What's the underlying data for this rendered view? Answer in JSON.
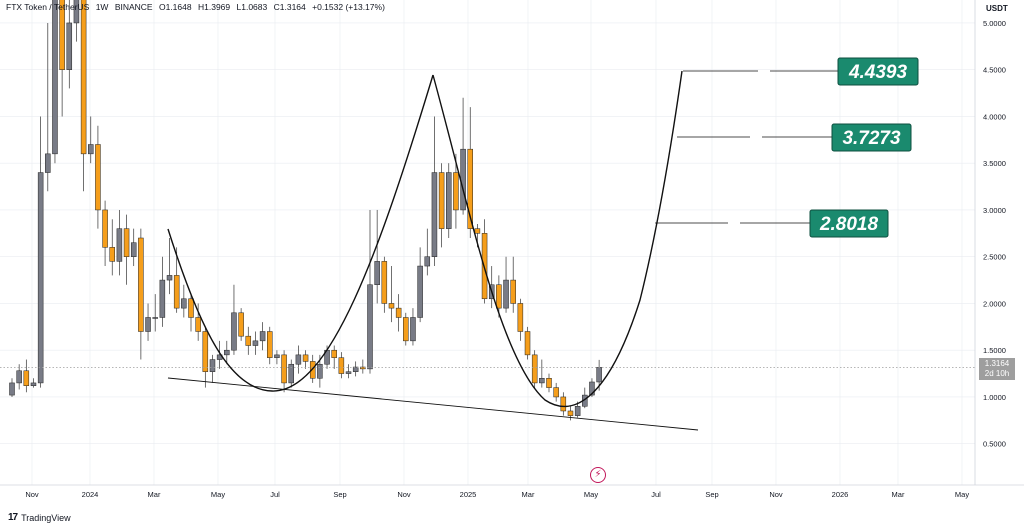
{
  "header": {
    "symbol": "FTX Token / TetherUS",
    "interval": "1W",
    "exchange": "BINANCE",
    "open": "O1.1648",
    "high": "H1.3969",
    "low": "L1.0683",
    "close": "C1.3164",
    "change": "+0.1532 (+13.17%)"
  },
  "price_axis": {
    "unit": "USDT",
    "current_price": "1.3164",
    "countdown": "2d 10h"
  },
  "branding": {
    "name": "TradingView"
  },
  "colors": {
    "up": "#787b86",
    "down": "#f59e1b",
    "target_bg": "#1a8a6e",
    "grid": "#e9ecf1"
  },
  "chart_data": {
    "type": "candlestick",
    "interval": "1W",
    "y_scale": "linear",
    "ylim": [
      0.2,
      5.2
    ],
    "y_ticks": [
      "5.0000",
      "4.5000",
      "4.0000",
      "3.5000",
      "3.0000",
      "2.5000",
      "2.0000",
      "1.5000",
      "1.0000",
      "0.5000"
    ],
    "y_tick_values": [
      5,
      4.5,
      4,
      3.5,
      3,
      2.5,
      2,
      1.5,
      1,
      0.5
    ],
    "x_ticks": [
      "Nov",
      "2024",
      "Mar",
      "May",
      "Jul",
      "Sep",
      "Nov",
      "2025",
      "Mar",
      "May",
      "Jul",
      "Sep",
      "Nov",
      "2026",
      "Mar",
      "May"
    ],
    "current_price": 1.3164,
    "targets": [
      {
        "label": "4.4393",
        "value": 4.4393
      },
      {
        "label": "3.7273",
        "value": 3.7273
      },
      {
        "label": "2.8018",
        "value": 2.8018
      }
    ],
    "candles": [
      [
        1.02,
        1.15,
        1.0,
        1.2
      ],
      [
        1.15,
        1.28,
        1.08,
        1.35
      ],
      [
        1.28,
        1.12,
        1.05,
        1.4
      ],
      [
        1.12,
        1.15,
        1.1,
        1.2
      ],
      [
        1.15,
        3.4,
        1.1,
        4.0
      ],
      [
        3.4,
        3.6,
        3.2,
        5.0
      ],
      [
        3.6,
        5.8,
        3.5,
        6.0
      ],
      [
        5.8,
        4.5,
        4.0,
        6.0
      ],
      [
        4.5,
        5.0,
        4.3,
        5.3
      ],
      [
        5.0,
        5.5,
        4.8,
        6.0
      ],
      [
        5.5,
        3.6,
        3.2,
        6.0
      ],
      [
        3.6,
        3.7,
        3.5,
        4.0
      ],
      [
        3.7,
        3.0,
        2.8,
        3.9
      ],
      [
        3.0,
        2.6,
        2.4,
        3.1
      ],
      [
        2.6,
        2.45,
        2.3,
        2.9
      ],
      [
        2.45,
        2.8,
        2.3,
        3.0
      ],
      [
        2.8,
        2.5,
        2.2,
        2.95
      ],
      [
        2.5,
        2.65,
        2.4,
        2.8
      ],
      [
        2.7,
        1.7,
        1.4,
        2.8
      ],
      [
        1.7,
        1.85,
        1.6,
        2.0
      ],
      [
        1.85,
        1.85,
        1.7,
        2.1
      ],
      [
        1.85,
        2.25,
        1.75,
        2.5
      ],
      [
        2.25,
        2.3,
        2.1,
        2.7
      ],
      [
        2.3,
        1.95,
        1.9,
        2.6
      ],
      [
        1.95,
        2.05,
        1.85,
        2.2
      ],
      [
        2.05,
        1.85,
        1.7,
        2.1
      ],
      [
        1.85,
        1.7,
        1.6,
        2.0
      ],
      [
        1.7,
        1.27,
        1.1,
        1.75
      ],
      [
        1.27,
        1.4,
        1.15,
        1.45
      ],
      [
        1.4,
        1.45,
        1.3,
        1.6
      ],
      [
        1.45,
        1.5,
        1.35,
        1.6
      ],
      [
        1.5,
        1.9,
        1.45,
        2.2
      ],
      [
        1.9,
        1.65,
        1.6,
        1.95
      ],
      [
        1.65,
        1.55,
        1.45,
        1.75
      ],
      [
        1.55,
        1.6,
        1.45,
        1.7
      ],
      [
        1.6,
        1.7,
        1.5,
        1.8
      ],
      [
        1.7,
        1.42,
        1.35,
        1.75
      ],
      [
        1.42,
        1.45,
        1.35,
        1.5
      ],
      [
        1.45,
        1.15,
        1.05,
        1.5
      ],
      [
        1.15,
        1.35,
        1.1,
        1.4
      ],
      [
        1.35,
        1.45,
        1.25,
        1.55
      ],
      [
        1.45,
        1.38,
        1.3,
        1.5
      ],
      [
        1.38,
        1.2,
        1.15,
        1.45
      ],
      [
        1.2,
        1.35,
        1.1,
        1.45
      ],
      [
        1.35,
        1.5,
        1.3,
        1.55
      ],
      [
        1.5,
        1.42,
        1.3,
        1.55
      ],
      [
        1.42,
        1.25,
        1.2,
        1.48
      ],
      [
        1.25,
        1.27,
        1.2,
        1.35
      ],
      [
        1.27,
        1.32,
        1.22,
        1.38
      ],
      [
        1.32,
        1.3,
        1.25,
        1.4
      ],
      [
        1.3,
        2.2,
        1.25,
        3.0
      ],
      [
        2.2,
        2.45,
        2.0,
        3.0
      ],
      [
        2.45,
        2.0,
        1.9,
        2.5
      ],
      [
        2.0,
        1.95,
        1.8,
        2.4
      ],
      [
        1.95,
        1.85,
        1.7,
        2.1
      ],
      [
        1.85,
        1.6,
        1.55,
        1.9
      ],
      [
        1.6,
        1.85,
        1.55,
        1.95
      ],
      [
        1.85,
        2.4,
        1.8,
        2.6
      ],
      [
        2.4,
        2.5,
        2.3,
        2.8
      ],
      [
        2.5,
        3.4,
        2.4,
        4.0
      ],
      [
        3.4,
        2.8,
        2.6,
        3.5
      ],
      [
        2.8,
        3.4,
        2.7,
        3.5
      ],
      [
        3.4,
        3.0,
        2.8,
        3.6
      ],
      [
        3.0,
        3.65,
        2.95,
        4.2
      ],
      [
        3.65,
        2.8,
        2.7,
        4.1
      ],
      [
        2.8,
        2.75,
        2.6,
        2.85
      ],
      [
        2.75,
        2.05,
        2.0,
        2.9
      ],
      [
        2.05,
        2.2,
        1.95,
        2.4
      ],
      [
        2.2,
        1.95,
        1.85,
        2.3
      ],
      [
        1.95,
        2.25,
        1.9,
        2.5
      ],
      [
        2.25,
        2.0,
        1.9,
        2.5
      ],
      [
        2.0,
        1.7,
        1.6,
        2.05
      ],
      [
        1.7,
        1.45,
        1.4,
        1.75
      ],
      [
        1.45,
        1.15,
        1.1,
        1.5
      ],
      [
        1.15,
        1.2,
        1.1,
        1.4
      ],
      [
        1.2,
        1.1,
        1.05,
        1.25
      ],
      [
        1.1,
        1.0,
        0.95,
        1.15
      ],
      [
        1.0,
        0.85,
        0.8,
        1.05
      ],
      [
        0.85,
        0.8,
        0.75,
        0.9
      ],
      [
        0.8,
        0.9,
        0.78,
        0.95
      ],
      [
        0.9,
        1.02,
        0.88,
        1.1
      ],
      [
        1.02,
        1.16,
        1.0,
        1.2
      ],
      [
        1.16,
        1.3164,
        1.0683,
        1.3969
      ]
    ]
  }
}
